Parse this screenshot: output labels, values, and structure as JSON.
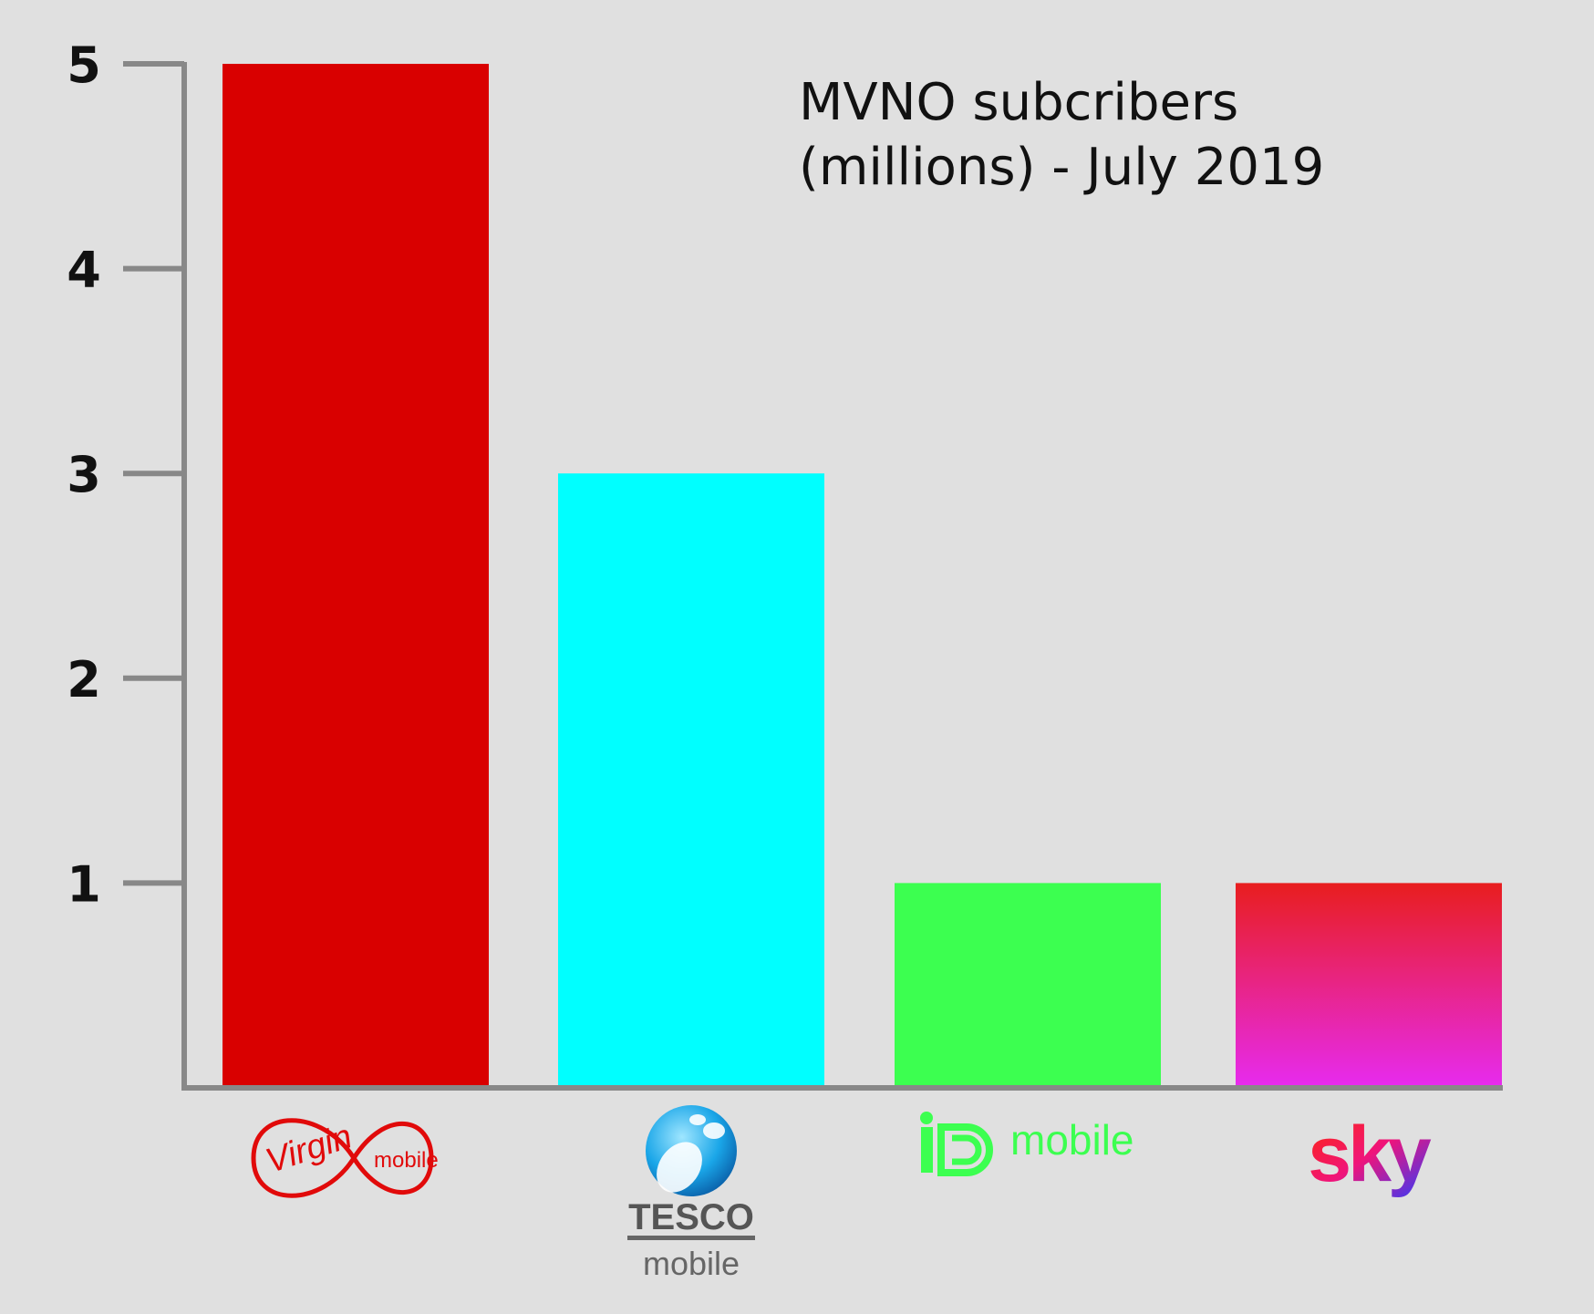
{
  "chart_data": {
    "type": "bar",
    "title_lines": [
      "MVNO subcribers",
      "(millions) - July 2019"
    ],
    "categories": [
      "Virgin mobile",
      "TESCO mobile",
      "iD mobile",
      "sky"
    ],
    "values": [
      5,
      3,
      1,
      1
    ],
    "yticks": [
      1,
      2,
      3,
      4,
      5
    ],
    "ylim": [
      0,
      5
    ],
    "grid": false,
    "colors": [
      [
        "#d90000",
        "#d90000"
      ],
      [
        "#00ffff",
        "#00ffff"
      ],
      [
        "#3cff50",
        "#3cff50"
      ],
      [
        "#e81e1e",
        "#e72bf0"
      ]
    ],
    "axis_color": "#888888"
  },
  "logos": {
    "virgin": {
      "script": "Virgin",
      "word": "mobile",
      "color": "#e10a0a"
    },
    "tesco": {
      "brand": "TESCO",
      "word": "mobile"
    },
    "id": {
      "mark": "iD",
      "word": "mobile",
      "color": "#3cff50"
    },
    "sky": {
      "word": "sky"
    }
  }
}
